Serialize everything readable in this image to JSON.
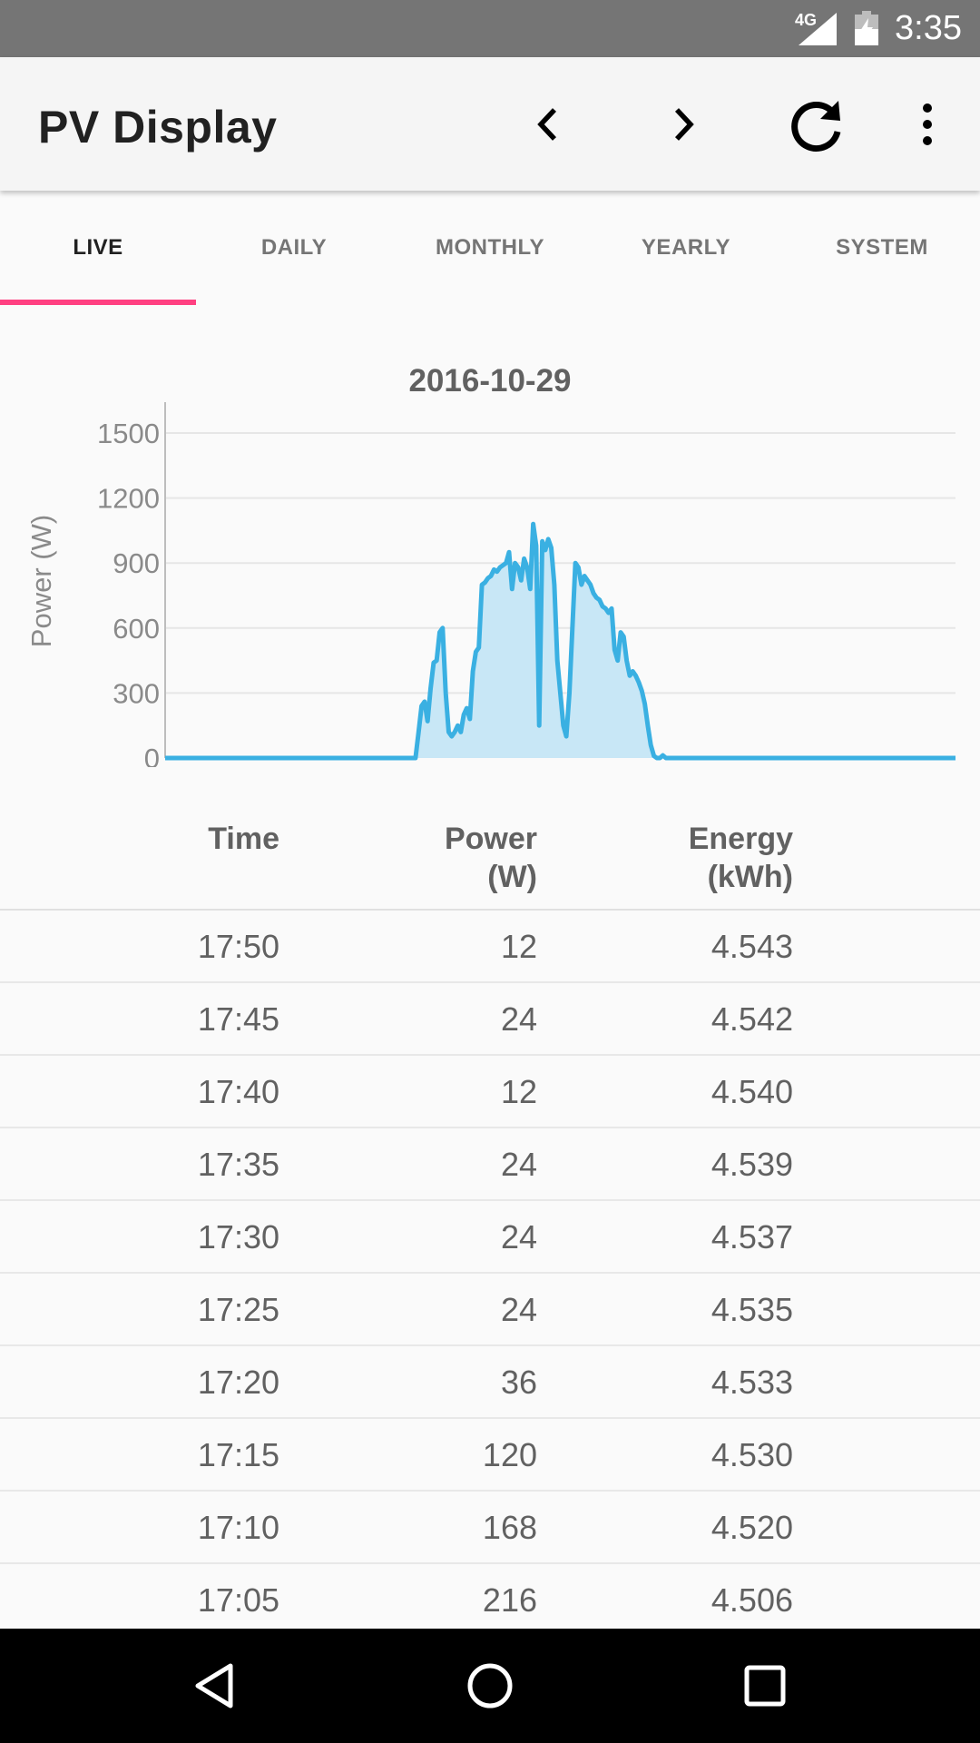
{
  "status_bar": {
    "network": "4G",
    "time": "3:35"
  },
  "app_bar": {
    "title": "PV Display",
    "icons": [
      "chevron-left-icon",
      "chevron-right-icon",
      "refresh-icon",
      "more-vert-icon"
    ]
  },
  "tabs": [
    {
      "label": "LIVE",
      "active": true
    },
    {
      "label": "DAILY",
      "active": false
    },
    {
      "label": "MONTHLY",
      "active": false
    },
    {
      "label": "YEARLY",
      "active": false
    },
    {
      "label": "SYSTEM",
      "active": false
    }
  ],
  "colors": {
    "accent": "#ff4081",
    "series": "#3ab0e2",
    "series_fill": "#c8e7f6"
  },
  "chart_data": {
    "type": "area",
    "title": "2016-10-29",
    "ylabel": "Power (W)",
    "xlabel": "",
    "ylim": [
      0,
      1500
    ],
    "yticks": [
      0,
      300,
      600,
      900,
      1200,
      1500
    ],
    "grid": true,
    "x_step_minutes": 5,
    "series": [
      {
        "values": [
          0,
          0,
          0,
          0,
          0,
          0,
          0,
          0,
          0,
          0,
          0,
          0,
          0,
          0,
          0,
          0,
          0,
          0,
          0,
          0,
          0,
          0,
          0,
          0,
          0,
          0,
          0,
          0,
          0,
          0,
          0,
          0,
          0,
          0,
          0,
          0,
          0,
          0,
          0,
          0,
          0,
          0,
          0,
          0,
          0,
          0,
          0,
          0,
          0,
          0,
          0,
          0,
          0,
          0,
          0,
          0,
          0,
          0,
          0,
          0,
          0,
          0,
          0,
          0,
          0,
          0,
          0,
          0,
          0,
          0,
          0,
          0,
          0,
          0,
          0,
          0,
          0,
          0,
          0,
          0,
          0,
          0,
          0,
          0,
          120,
          240,
          260,
          170,
          320,
          440,
          450,
          580,
          600,
          300,
          120,
          100,
          120,
          150,
          120,
          200,
          230,
          180,
          400,
          490,
          510,
          800,
          810,
          830,
          840,
          870,
          860,
          880,
          890,
          900,
          950,
          780,
          900,
          880,
          820,
          920,
          880,
          780,
          1080,
          980,
          150,
          1000,
          960,
          1010,
          970,
          800,
          450,
          300,
          150,
          100,
          300,
          600,
          900,
          880,
          800,
          840,
          820,
          800,
          760,
          740,
          730,
          700,
          690,
          670,
          690,
          500,
          450,
          580,
          560,
          450,
          380,
          400,
          380,
          350,
          310,
          250,
          150,
          60,
          10,
          0,
          0,
          12,
          0,
          0,
          0,
          0,
          0,
          0,
          0,
          0,
          0,
          0,
          0,
          0,
          0,
          0,
          0,
          0,
          0,
          0,
          0,
          0,
          0,
          0,
          0,
          0,
          0,
          0,
          0,
          0,
          0,
          0,
          0,
          0,
          0,
          0,
          0,
          0,
          0,
          0,
          0,
          0,
          0,
          0,
          0,
          0,
          0,
          0,
          0,
          0,
          0,
          0,
          0,
          0,
          0,
          0,
          0,
          0,
          0,
          0,
          0,
          0,
          0,
          0,
          0,
          0,
          0,
          0,
          0,
          0,
          0,
          0,
          0,
          0,
          0,
          0,
          0,
          0,
          0,
          0,
          0,
          0,
          0,
          0,
          0,
          0,
          0,
          0,
          0,
          0,
          0,
          0,
          0,
          0,
          0,
          0,
          0,
          0,
          0
        ]
      }
    ]
  },
  "table": {
    "headers": {
      "time": "Time",
      "power_line1": "Power",
      "power_line2": "(W)",
      "energy_line1": "Energy",
      "energy_line2": "(kWh)"
    },
    "rows": [
      {
        "time": "17:50",
        "power": "12",
        "energy": "4.543"
      },
      {
        "time": "17:45",
        "power": "24",
        "energy": "4.542"
      },
      {
        "time": "17:40",
        "power": "12",
        "energy": "4.540"
      },
      {
        "time": "17:35",
        "power": "24",
        "energy": "4.539"
      },
      {
        "time": "17:30",
        "power": "24",
        "energy": "4.537"
      },
      {
        "time": "17:25",
        "power": "24",
        "energy": "4.535"
      },
      {
        "time": "17:20",
        "power": "36",
        "energy": "4.533"
      },
      {
        "time": "17:15",
        "power": "120",
        "energy": "4.530"
      },
      {
        "time": "17:10",
        "power": "168",
        "energy": "4.520"
      },
      {
        "time": "17:05",
        "power": "216",
        "energy": "4.506"
      }
    ]
  },
  "nav_bar": {
    "icons": [
      "back-icon",
      "home-icon",
      "recents-icon"
    ]
  }
}
